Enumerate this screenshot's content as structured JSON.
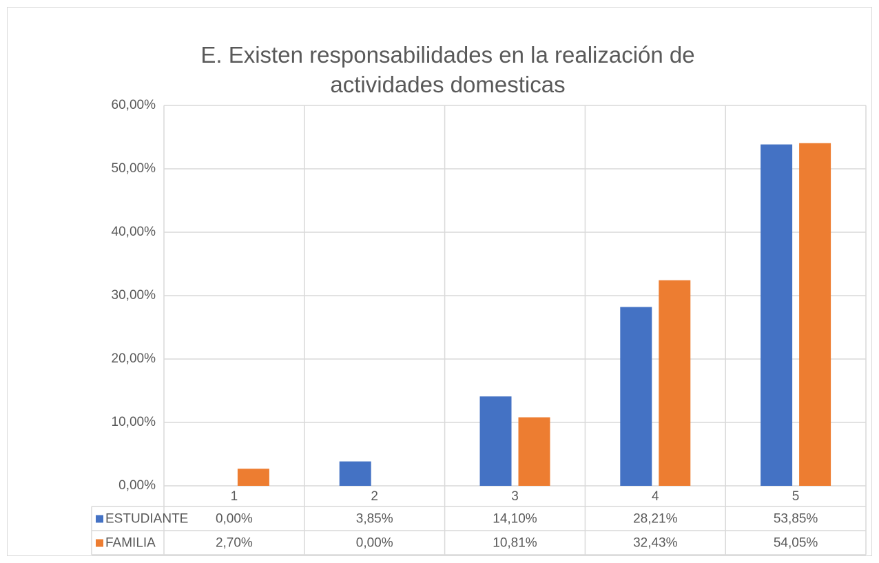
{
  "chart_data": {
    "type": "bar",
    "title": "E. Existen responsabilidades en la realización de actividades domesticas",
    "categories": [
      "1",
      "2",
      "3",
      "4",
      "5"
    ],
    "series": [
      {
        "name": "ESTUDIANTE",
        "color": "#4472c4",
        "values": [
          0,
          3.85,
          14.1,
          28.21,
          53.85
        ],
        "value_labels": [
          "0,00%",
          "3,85%",
          "14,10%",
          "28,21%",
          "53,85%"
        ]
      },
      {
        "name": "FAMILIA",
        "color": "#ed7d31",
        "values": [
          2.7,
          0,
          10.81,
          32.43,
          54.05
        ],
        "value_labels": [
          "2,70%",
          "0,00%",
          "10,81%",
          "32,43%",
          "54,05%"
        ]
      }
    ],
    "ylim": [
      0,
      60
    ],
    "yticks": [
      {
        "value": 0,
        "label": "0,00%"
      },
      {
        "value": 10,
        "label": "10,00%"
      },
      {
        "value": 20,
        "label": "20,00%"
      },
      {
        "value": 30,
        "label": "30,00%"
      },
      {
        "value": 40,
        "label": "40,00%"
      },
      {
        "value": 50,
        "label": "50,00%"
      },
      {
        "value": 60,
        "label": "60,00%"
      }
    ],
    "grid": true
  }
}
